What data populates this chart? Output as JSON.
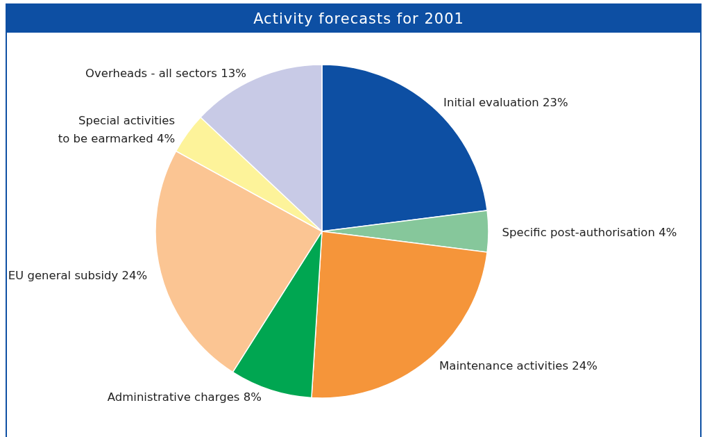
{
  "chart_data": {
    "type": "pie",
    "title": "Activity forecasts for 2001",
    "categories": [
      "Initial evaluation",
      "Specific post-authorisation",
      "Maintenance activities",
      "Administrative charges",
      "EU general subsidy",
      "Special activities\nto be earmarked",
      "Overheads - all sectors"
    ],
    "values": [
      23,
      4,
      24,
      8,
      24,
      4,
      13
    ],
    "value_labels": [
      "23%",
      "4%",
      "24%",
      "8%",
      "24%",
      "4%",
      "13%"
    ],
    "colors": [
      "#0d4fa3",
      "#86c79b",
      "#f5953a",
      "#00a651",
      "#fbc593",
      "#fdf39a",
      "#c8cae6"
    ]
  }
}
